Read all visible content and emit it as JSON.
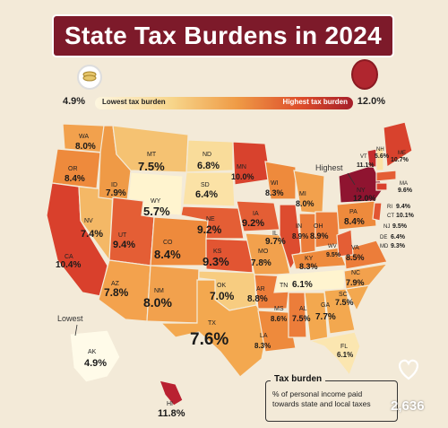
{
  "title": "State Tax Burdens in 2024",
  "scale": {
    "low_value": "4.9%",
    "low_label": "Lowest tax burden",
    "high_label": "Highest tax burden",
    "high_value": "12.0%"
  },
  "callouts": {
    "highest": "Highest",
    "lowest": "Lowest"
  },
  "legend": {
    "title": "Tax burden",
    "description": "% of personal income paid towards state and local taxes"
  },
  "social": {
    "likes": "2,636"
  },
  "states": [
    {
      "abbr": "WA",
      "value": "8.0%"
    },
    {
      "abbr": "OR",
      "value": "8.4%"
    },
    {
      "abbr": "CA",
      "value": "10.4%"
    },
    {
      "abbr": "NV",
      "value": "7.4%"
    },
    {
      "abbr": "ID",
      "value": "7.9%"
    },
    {
      "abbr": "MT",
      "value": "7.5%"
    },
    {
      "abbr": "WY",
      "value": "5.7%"
    },
    {
      "abbr": "UT",
      "value": "9.4%"
    },
    {
      "abbr": "AZ",
      "value": "7.8%"
    },
    {
      "abbr": "CO",
      "value": "8.4%"
    },
    {
      "abbr": "NM",
      "value": "8.0%"
    },
    {
      "abbr": "ND",
      "value": "6.8%"
    },
    {
      "abbr": "SD",
      "value": "6.4%"
    },
    {
      "abbr": "NE",
      "value": "9.2%"
    },
    {
      "abbr": "KS",
      "value": "9.3%"
    },
    {
      "abbr": "OK",
      "value": "7.0%"
    },
    {
      "abbr": "TX",
      "value": "7.6%"
    },
    {
      "abbr": "MN",
      "value": "10.0%"
    },
    {
      "abbr": "IA",
      "value": "9.2%"
    },
    {
      "abbr": "MO",
      "value": "7.8%"
    },
    {
      "abbr": "AR",
      "value": "8.8%"
    },
    {
      "abbr": "LA",
      "value": "8.3%"
    },
    {
      "abbr": "WI",
      "value": "8.3%"
    },
    {
      "abbr": "IL",
      "value": "9.7%"
    },
    {
      "abbr": "MI",
      "value": "8.0%"
    },
    {
      "abbr": "IN",
      "value": "8.9%"
    },
    {
      "abbr": "OH",
      "value": "8.9%"
    },
    {
      "abbr": "KY",
      "value": "8.3%"
    },
    {
      "abbr": "TN",
      "value": "6.1%"
    },
    {
      "abbr": "MS",
      "value": "8.6%"
    },
    {
      "abbr": "AL",
      "value": "7.5%"
    },
    {
      "abbr": "GA",
      "value": "7.7%"
    },
    {
      "abbr": "FL",
      "value": "6.1%"
    },
    {
      "abbr": "SC",
      "value": "7.5%"
    },
    {
      "abbr": "NC",
      "value": "7.9%"
    },
    {
      "abbr": "VA",
      "value": "8.5%"
    },
    {
      "abbr": "WV",
      "value": "9.5%"
    },
    {
      "abbr": "PA",
      "value": "8.4%"
    },
    {
      "abbr": "NY",
      "value": "12.0%"
    },
    {
      "abbr": "VT",
      "value": "11.1%"
    },
    {
      "abbr": "NH",
      "value": "5.6%"
    },
    {
      "abbr": "ME",
      "value": "10.7%"
    },
    {
      "abbr": "MA",
      "value": "9.6%"
    },
    {
      "abbr": "RI",
      "value": "9.4%"
    },
    {
      "abbr": "CT",
      "value": "10.1%"
    },
    {
      "abbr": "NJ",
      "value": "9.5%"
    },
    {
      "abbr": "DE",
      "value": "6.4%"
    },
    {
      "abbr": "MD",
      "value": "9.3%"
    },
    {
      "abbr": "AK",
      "value": "4.9%"
    },
    {
      "abbr": "HI",
      "value": "11.8%"
    }
  ]
}
